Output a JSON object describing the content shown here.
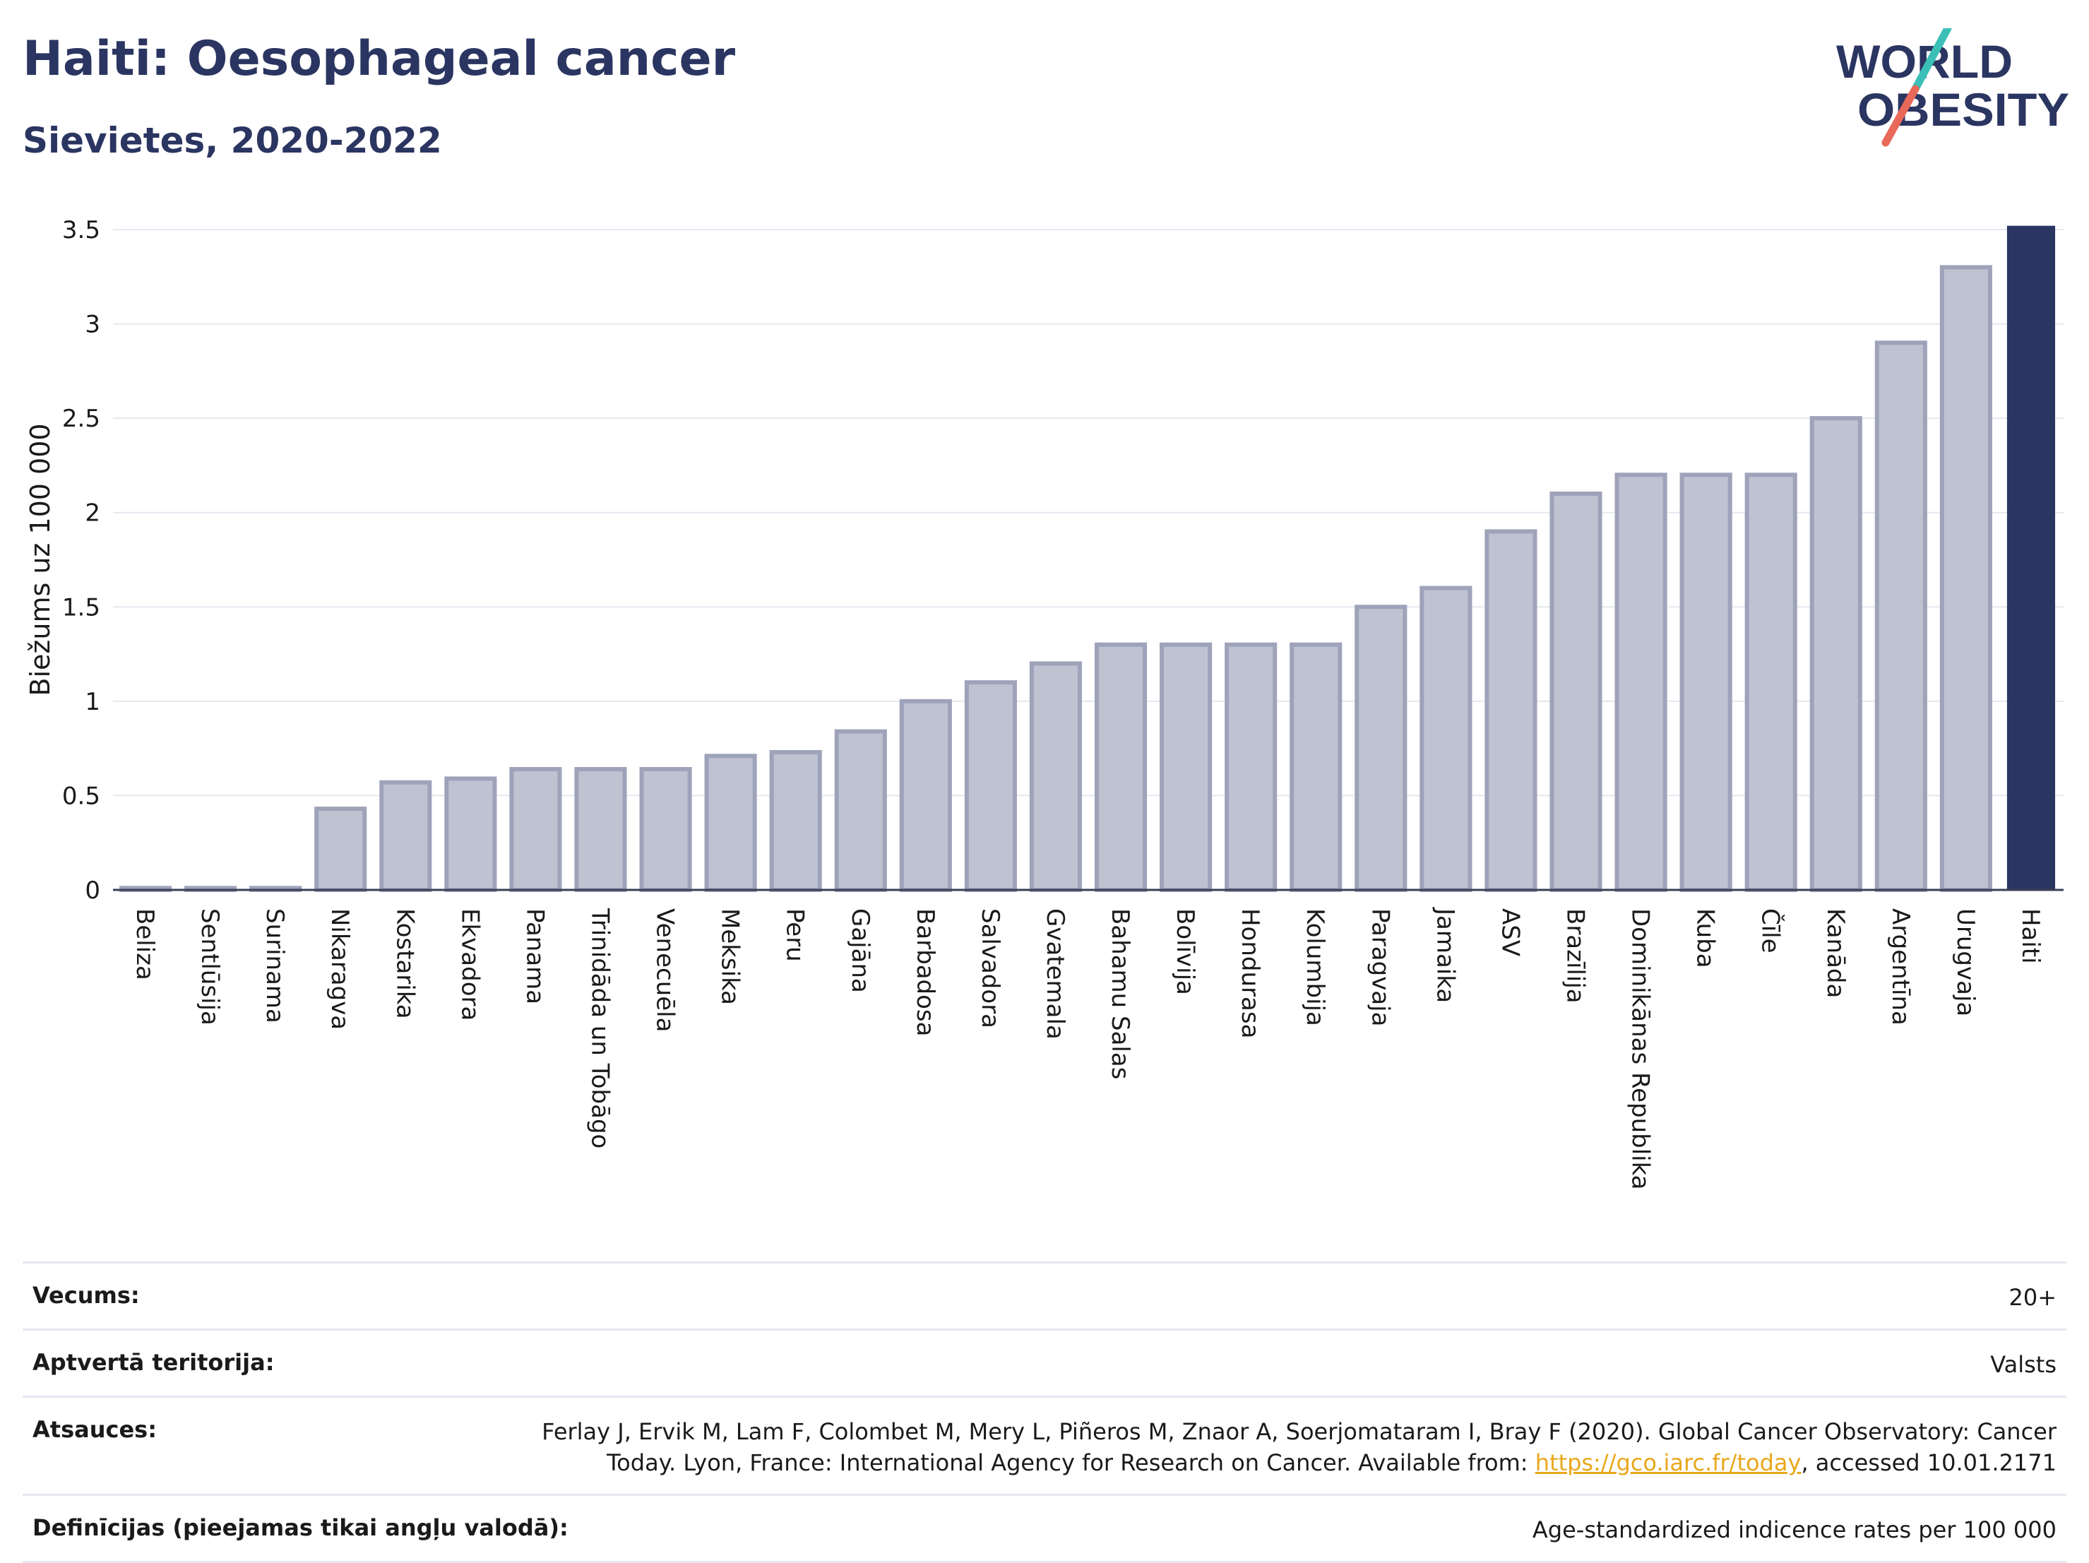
{
  "header": {
    "title": "Haiti: Oesophageal cancer",
    "subtitle": "Sievietes, 2020-2022"
  },
  "logo": {
    "line1": "WORLD",
    "line2": "OBESITY",
    "colors": {
      "text": "#2b3561",
      "slash_teal": "#3bbfb6",
      "slash_coral": "#e8685a"
    }
  },
  "chart_data": {
    "type": "bar",
    "ylabel": "Biežums uz 100 000",
    "ylim": [
      0,
      3.5
    ],
    "yticks": [
      0,
      0.5,
      1,
      1.5,
      2,
      2.5,
      3,
      3.5
    ],
    "ytick_labels": [
      "0",
      "0.5",
      "1",
      "1.5",
      "2",
      "2.5",
      "3",
      "3.5"
    ],
    "grid": true,
    "highlight": "Haiti",
    "colors": {
      "bar": "#bfc2d1",
      "bar_border": "#9ea3ba",
      "highlight": "#2b3561"
    },
    "categories": [
      "Beliza",
      "Sentlūsija",
      "Surinama",
      "Nikaragva",
      "Kostarika",
      "Ekvadora",
      "Panama",
      "Trinidāda un Tobāgo",
      "Venecuēla",
      "Meksika",
      "Peru",
      "Gajāna",
      "Barbadosa",
      "Salvadora",
      "Gvatemala",
      "Bahamu Salas",
      "Bolīvija",
      "Hondurasa",
      "Kolumbija",
      "Paragvaja",
      "Jamaika",
      "ASV",
      "Brazīlija",
      "Dominikānas Republika",
      "Kuba",
      "Čīle",
      "Kanāda",
      "Argentīna",
      "Urugvaja",
      "Haiti"
    ],
    "values": [
      0.01,
      0.01,
      0.01,
      0.43,
      0.57,
      0.59,
      0.64,
      0.64,
      0.64,
      0.71,
      0.73,
      0.84,
      1.0,
      1.1,
      1.2,
      1.3,
      1.3,
      1.3,
      1.3,
      1.5,
      1.6,
      1.9,
      2.1,
      2.2,
      2.2,
      2.2,
      2.5,
      2.9,
      3.3,
      3.52
    ]
  },
  "info": [
    {
      "label": "Vecums:",
      "value": "20+"
    },
    {
      "label": "Aptvertā teritorija:",
      "value": "Valsts"
    },
    {
      "label": "Atsauces:",
      "value_line1": "Ferlay J, Ervik M, Lam F, Colombet M, Mery L, Piñeros M, Znaor A, Soerjomataram I, Bray F (2020). Global Cancer Observatory: Cancer",
      "value_line2_pre": "Today. Lyon, France: International Agency for Research on Cancer. Available from: ",
      "link": "https://gco.iarc.fr/today",
      "value_line2_post": ", accessed 10.01.2171"
    },
    {
      "label": "Definīcijas (pieejamas tikai angļu valodā):",
      "value": "Age-standardized indicence rates per 100 000"
    }
  ]
}
